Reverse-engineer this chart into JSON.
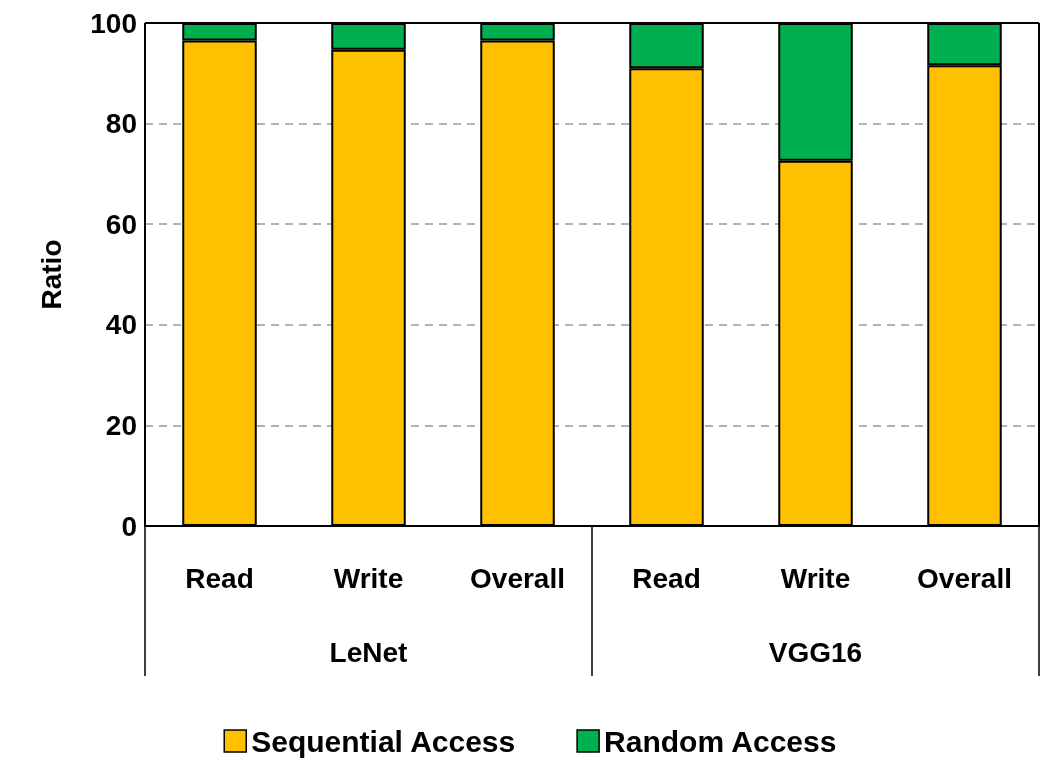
{
  "chart_data": {
    "type": "bar",
    "stacked": true,
    "ylabel": "Ratio",
    "categories": [
      "Read",
      "Write",
      "Overall",
      "Read",
      "Write",
      "Overall"
    ],
    "series": [
      {
        "name": "Sequential Access",
        "color": "#ffc000",
        "values": [
          96.5,
          94.7,
          96.5,
          91,
          72.6,
          91.6
        ]
      },
      {
        "name": "Random Access",
        "color": "#00b050",
        "values": [
          3.5,
          5.3,
          3.5,
          9,
          27.4,
          8.4
        ]
      }
    ],
    "ylim": [
      0,
      100
    ],
    "yticks": [
      0,
      20,
      40,
      60,
      80,
      100
    ],
    "grid": "y",
    "legend": "bottom",
    "annotations": [
      "LeNet",
      "VGG16"
    ]
  }
}
